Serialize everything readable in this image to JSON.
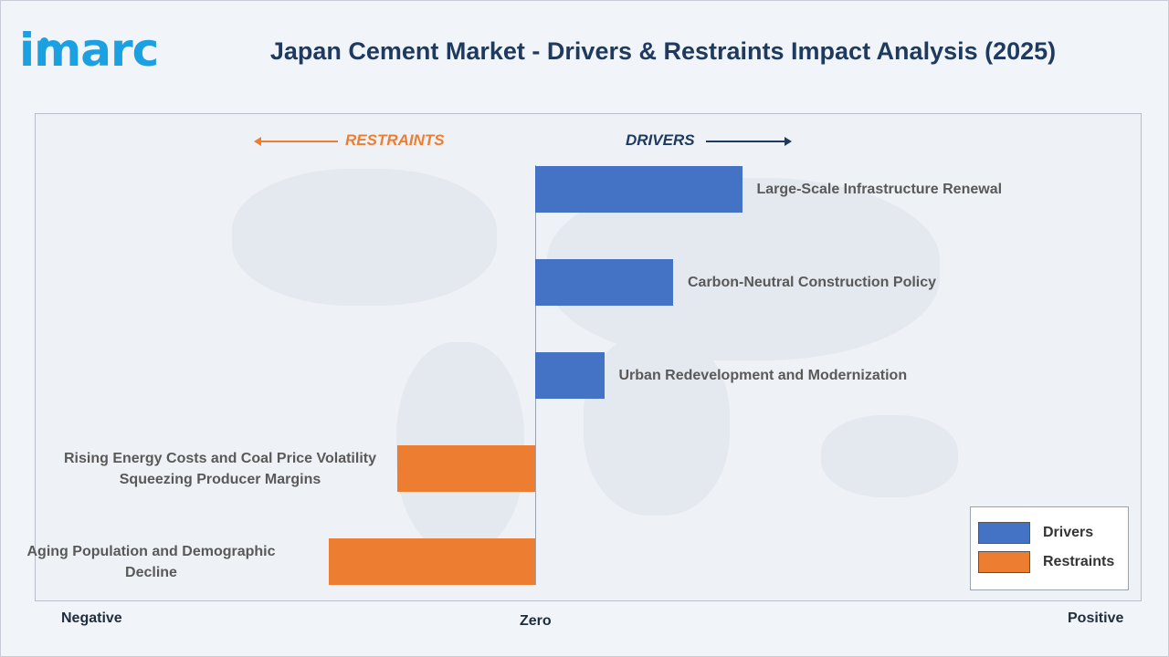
{
  "logo": {
    "text": "imarc",
    "color": "#1ba1e2"
  },
  "title": "Japan Cement Market - Drivers & Restraints Impact Analysis (2025)",
  "title_color": "#1f3a5f",
  "directions": {
    "restraints": "RESTRAINTS",
    "drivers": "DRIVERS"
  },
  "axis": {
    "negative": "Negative",
    "zero": "Zero",
    "positive": "Positive"
  },
  "legend": {
    "drivers": "Drivers",
    "restraints": "Restraints"
  },
  "colors": {
    "drivers": "#4472c4",
    "restraints": "#ed7d31",
    "drivers_text": "#1f3a5f",
    "restraints_text": "#ed7d31"
  },
  "chart_data": {
    "type": "bar",
    "orientation": "horizontal",
    "title": "Japan Cement Market - Drivers & Restraints Impact Analysis (2025)",
    "categories": [
      "Large-Scale Infrastructure Renewal",
      "Carbon-Neutral Construction Policy",
      "Urban Redevelopment and Modernization",
      "Rising Energy Costs and Coal Price Volatility Squeezing Producer Margins",
      "Aging Population and Demographic Decline"
    ],
    "label_lines": [
      [
        "Large-Scale Infrastructure Renewal"
      ],
      [
        "Carbon-Neutral Construction Policy"
      ],
      [
        "Urban Redevelopment and Modernization"
      ],
      [
        "Rising Energy Costs and Coal Price Volatility",
        "Squeezing Producer Margins"
      ],
      [
        "Aging Population and Demographic",
        "Decline"
      ]
    ],
    "series": [
      {
        "name": "Drivers",
        "values": [
          3,
          2,
          1,
          null,
          null
        ]
      },
      {
        "name": "Restraints",
        "values": [
          null,
          null,
          null,
          -2,
          -3
        ]
      }
    ],
    "xlim": [
      -7.3,
      8.8
    ],
    "xlabels": [
      "Negative",
      "Zero",
      "Positive"
    ],
    "legend_position": "bottom-right",
    "grid": false
  }
}
